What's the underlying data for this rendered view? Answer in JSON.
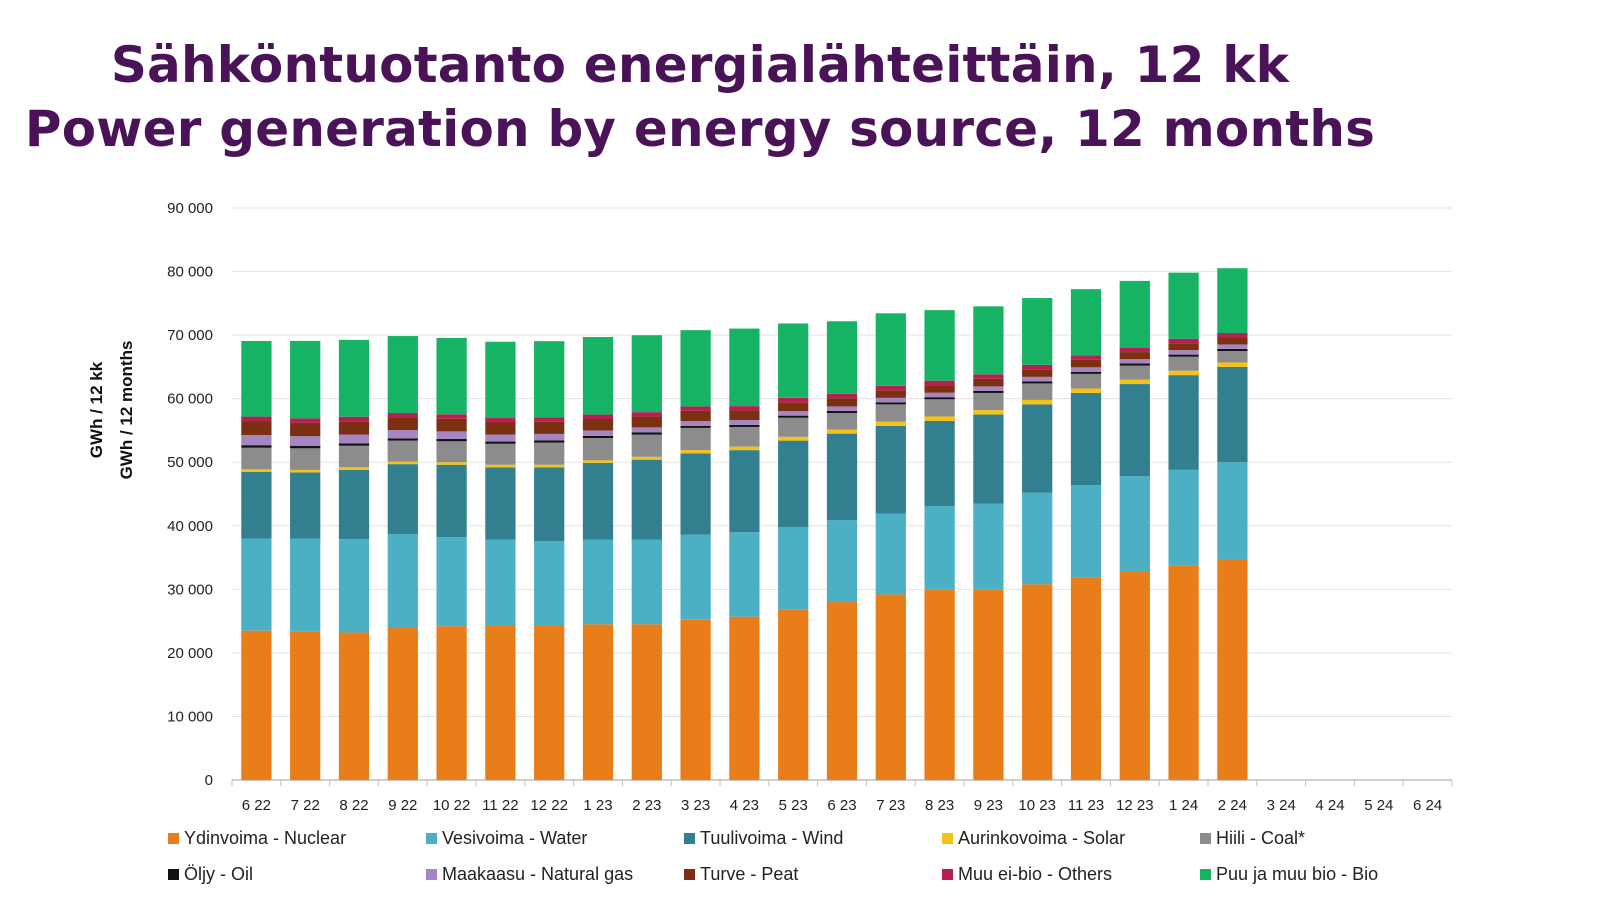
{
  "title": {
    "line1": "Sähköntuotanto energialähteittäin, 12 kk",
    "line2": "Power generation by energy source, 12 months"
  },
  "chart_data": {
    "type": "bar",
    "stacked": true,
    "ylabel_line1": "GWh / 12 kk",
    "ylabel_line2": "GWh / 12 months",
    "ylim": [
      0,
      90000
    ],
    "yticks": [
      0,
      10000,
      20000,
      30000,
      40000,
      50000,
      60000,
      70000,
      80000,
      90000
    ],
    "ytick_labels": [
      "0",
      "10 000",
      "20 000",
      "30 000",
      "40 000",
      "50 000",
      "60 000",
      "70 000",
      "80 000",
      "90 000"
    ],
    "grid": true,
    "legend_position": "bottom",
    "categories": [
      "6 22",
      "7 22",
      "8 22",
      "9 22",
      "10 22",
      "11 22",
      "12 22",
      "1 23",
      "2 23",
      "3 23",
      "4 23",
      "5 23",
      "6 23",
      "7 23",
      "8 23",
      "9 23",
      "10 23",
      "11 23",
      "12 23",
      "1 24",
      "2 24",
      "3 24",
      "4 24",
      "5 24",
      "6 24"
    ],
    "series": [
      {
        "name": "Ydinvoima - Nuclear",
        "color": "#e97d1a",
        "values": [
          23500,
          23300,
          23200,
          24000,
          24200,
          24300,
          24300,
          24500,
          24500,
          25200,
          25700,
          26800,
          28000,
          29200,
          30000,
          30000,
          30800,
          31800,
          32800,
          33800,
          34700,
          null,
          null,
          null,
          null
        ]
      },
      {
        "name": "Vesivoima - Water",
        "color": "#4cb0c4",
        "values": [
          14500,
          14700,
          14700,
          14700,
          14000,
          13500,
          13300,
          13300,
          13300,
          13400,
          13300,
          13000,
          12900,
          12700,
          13100,
          13500,
          14400,
          14600,
          15000,
          15000,
          15300,
          null,
          null,
          null,
          null
        ]
      },
      {
        "name": "Tuulivoima - Wind",
        "color": "#327f8f",
        "values": [
          10500,
          10400,
          10900,
          11000,
          11400,
          11400,
          11600,
          12100,
          12600,
          12800,
          12900,
          13600,
          13600,
          13800,
          13400,
          14000,
          13900,
          14500,
          14500,
          14900,
          15000,
          null,
          null,
          null,
          null
        ]
      },
      {
        "name": "Aurinkovoima - Solar",
        "color": "#f5c316",
        "values": [
          380,
          390,
          400,
          400,
          400,
          400,
          400,
          400,
          450,
          500,
          550,
          600,
          650,
          700,
          700,
          700,
          700,
          700,
          700,
          700,
          700,
          null,
          null,
          null,
          null
        ]
      },
      {
        "name": "Hiili - Coal*",
        "color": "#8c8c8c",
        "values": [
          3400,
          3400,
          3400,
          3300,
          3300,
          3300,
          3500,
          3500,
          3500,
          3500,
          3100,
          3000,
          2600,
          2700,
          2700,
          2700,
          2600,
          2300,
          2200,
          2200,
          1800,
          null,
          null,
          null,
          null
        ]
      },
      {
        "name": "Öljy - Oil",
        "color": "#111111",
        "values": [
          400,
          400,
          350,
          350,
          350,
          350,
          350,
          350,
          330,
          330,
          330,
          330,
          330,
          330,
          330,
          330,
          330,
          330,
          330,
          330,
          330,
          null,
          null,
          null,
          null
        ]
      },
      {
        "name": "Maakaasu - Natural gas",
        "color": "#a486c2",
        "values": [
          1600,
          1500,
          1400,
          1300,
          1200,
          1100,
          1000,
          850,
          800,
          750,
          750,
          700,
          700,
          700,
          700,
          700,
          700,
          700,
          700,
          700,
          700,
          null,
          null,
          null,
          null
        ]
      },
      {
        "name": "Turve - Peat",
        "color": "#7b3012",
        "values": [
          2200,
          2100,
          2100,
          2000,
          2000,
          1900,
          1900,
          1800,
          1700,
          1600,
          1500,
          1400,
          1300,
          1200,
          1200,
          1200,
          1200,
          1200,
          1100,
          1100,
          1100,
          null,
          null,
          null,
          null
        ]
      },
      {
        "name": "Muu ei-bio - Others",
        "color": "#b81e52",
        "values": [
          700,
          700,
          700,
          700,
          700,
          700,
          700,
          700,
          700,
          700,
          700,
          700,
          700,
          700,
          700,
          700,
          700,
          700,
          700,
          700,
          700,
          null,
          null,
          null,
          null
        ]
      },
      {
        "name": "Puu ja muu bio - Bio",
        "color": "#17b365",
        "values": [
          11900,
          12200,
          12100,
          12100,
          12000,
          12000,
          12000,
          12200,
          12100,
          12000,
          12200,
          11700,
          11400,
          11400,
          11100,
          10700,
          10500,
          10400,
          10500,
          10400,
          10200,
          null,
          null,
          null,
          null
        ]
      }
    ]
  }
}
